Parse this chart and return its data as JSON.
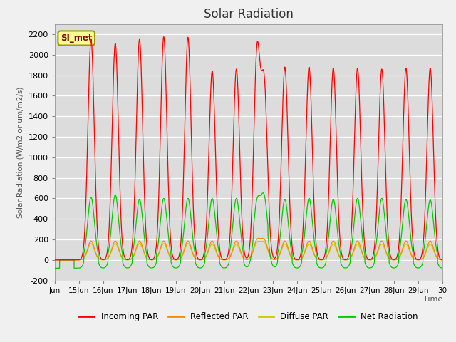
{
  "title": "Solar Radiation",
  "ylabel": "Solar Radiation (W/m2 or um/m2/s)",
  "xlabel": "Time",
  "xlim": [
    0,
    16
  ],
  "ylim": [
    -200,
    2300
  ],
  "yticks": [
    -200,
    0,
    200,
    400,
    600,
    800,
    1000,
    1200,
    1400,
    1600,
    1800,
    2000,
    2200
  ],
  "xtick_labels": [
    "Jun",
    "15Jun",
    "16Jun",
    "17Jun",
    "18Jun",
    "19Jun",
    "20Jun",
    "21Jun",
    "22Jun",
    "23Jun",
    "24Jun",
    "25Jun",
    "26Jun",
    "27Jun",
    "28Jun",
    "29Jun",
    "30"
  ],
  "xtick_positions": [
    0,
    1,
    2,
    3,
    4,
    5,
    6,
    7,
    8,
    9,
    10,
    11,
    12,
    13,
    14,
    15,
    16
  ],
  "annotation_text": "SI_met",
  "colors": {
    "incoming": "#FF0000",
    "reflected": "#FF8C00",
    "diffuse": "#CCCC00",
    "net": "#00CC00"
  },
  "background_color": "#DCDCDC",
  "grid_color": "#FFFFFF",
  "title_fontsize": 12,
  "legend_labels": [
    "Incoming PAR",
    "Reflected PAR",
    "Diffuse PAR",
    "Net Radiation"
  ],
  "incoming_peaks": [
    [
      1.5,
      2150
    ],
    [
      2.5,
      2110
    ],
    [
      3.5,
      2150
    ],
    [
      4.5,
      2175
    ],
    [
      5.5,
      2170
    ],
    [
      6.5,
      1840
    ],
    [
      7.5,
      1860
    ],
    [
      8.35,
      1990
    ],
    [
      8.65,
      1660
    ],
    [
      9.5,
      1880
    ],
    [
      10.5,
      1880
    ],
    [
      11.5,
      1870
    ],
    [
      12.5,
      1870
    ],
    [
      13.5,
      1860
    ],
    [
      14.5,
      1870
    ],
    [
      15.5,
      1870
    ]
  ],
  "net_peaks": [
    [
      1.5,
      610
    ],
    [
      2.5,
      635
    ],
    [
      3.5,
      590
    ],
    [
      4.5,
      600
    ],
    [
      5.5,
      600
    ],
    [
      6.5,
      600
    ],
    [
      7.5,
      600
    ],
    [
      8.35,
      540
    ],
    [
      8.65,
      580
    ],
    [
      9.5,
      590
    ],
    [
      10.5,
      600
    ],
    [
      11.5,
      590
    ],
    [
      12.5,
      600
    ],
    [
      13.5,
      600
    ],
    [
      14.5,
      590
    ],
    [
      15.5,
      585
    ]
  ],
  "reflected_peaks": [
    [
      1.5,
      185
    ],
    [
      2.5,
      185
    ],
    [
      3.5,
      185
    ],
    [
      4.5,
      185
    ],
    [
      5.5,
      185
    ],
    [
      6.5,
      185
    ],
    [
      7.5,
      185
    ],
    [
      8.35,
      185
    ],
    [
      8.65,
      185
    ],
    [
      9.5,
      185
    ],
    [
      10.5,
      185
    ],
    [
      11.5,
      185
    ],
    [
      12.5,
      185
    ],
    [
      13.5,
      185
    ],
    [
      14.5,
      185
    ],
    [
      15.5,
      185
    ]
  ],
  "diffuse_peaks": [
    [
      1.5,
      160
    ],
    [
      2.5,
      160
    ],
    [
      3.5,
      160
    ],
    [
      4.5,
      160
    ],
    [
      5.5,
      160
    ],
    [
      6.5,
      155
    ],
    [
      7.5,
      155
    ],
    [
      8.35,
      160
    ],
    [
      8.65,
      160
    ],
    [
      9.5,
      155
    ],
    [
      10.5,
      155
    ],
    [
      11.5,
      155
    ],
    [
      12.5,
      155
    ],
    [
      13.5,
      155
    ],
    [
      14.5,
      155
    ],
    [
      15.5,
      155
    ]
  ],
  "net_night": -80
}
